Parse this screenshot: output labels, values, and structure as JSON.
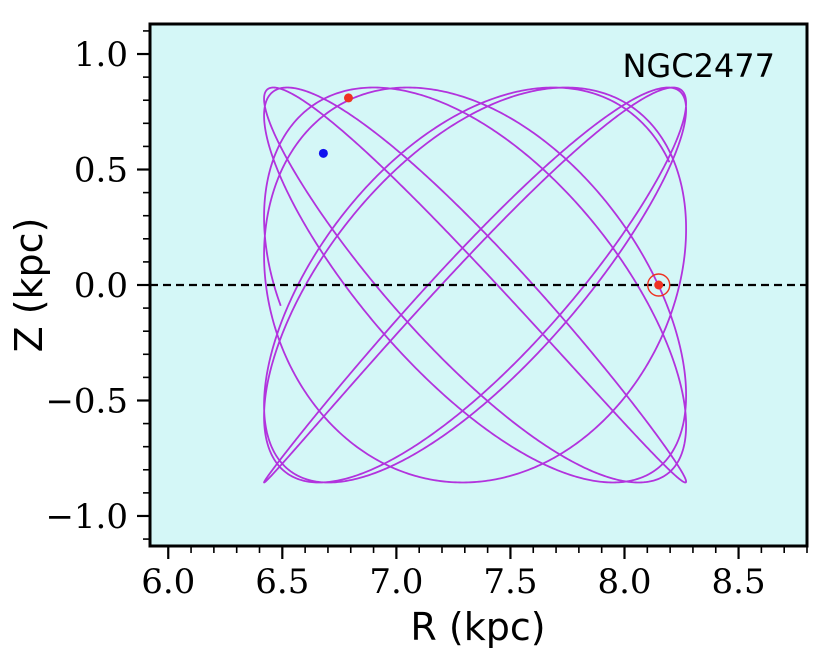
{
  "chart_data": {
    "type": "line",
    "annotation": "NGC2477",
    "xlabel": "R (kpc)",
    "ylabel": "Z (kpc)",
    "xlim": [
      5.92,
      8.8
    ],
    "ylim": [
      -1.13,
      1.13
    ],
    "xticks": [
      6.0,
      6.5,
      7.0,
      7.5,
      8.0,
      8.5
    ],
    "xtick_labels": [
      "6.0",
      "6.5",
      "7.0",
      "7.5",
      "8.0",
      "8.5"
    ],
    "yticks": [
      1.0,
      0.5,
      0.0,
      -0.5,
      -1.0
    ],
    "ytick_labels": [
      "1.0",
      "0.5",
      "0.0",
      "−0.5",
      "−1.0"
    ],
    "x_minor_step": 0.1,
    "y_minor_step": 0.1,
    "grid": false,
    "background_color": "#d4f7f7",
    "orbit": {
      "color": "#b233dd",
      "r_min": 6.42,
      "r_max": 8.27,
      "z_amplitude": 0.855,
      "radial_frequency": 1.0,
      "vertical_frequency": 1.14,
      "periods": 6.5
    },
    "reference_line": {
      "y": 0.0,
      "style": "dashed",
      "color": "#000000"
    },
    "points": [
      {
        "label": "start",
        "x": 6.79,
        "y": 0.81,
        "color": "#ee3322"
      },
      {
        "label": "end",
        "x": 6.68,
        "y": 0.57,
        "color": "#1111ee"
      },
      {
        "label": "sun",
        "x": 8.15,
        "y": 0.0,
        "color": "#ee3322",
        "circled": true
      }
    ]
  }
}
